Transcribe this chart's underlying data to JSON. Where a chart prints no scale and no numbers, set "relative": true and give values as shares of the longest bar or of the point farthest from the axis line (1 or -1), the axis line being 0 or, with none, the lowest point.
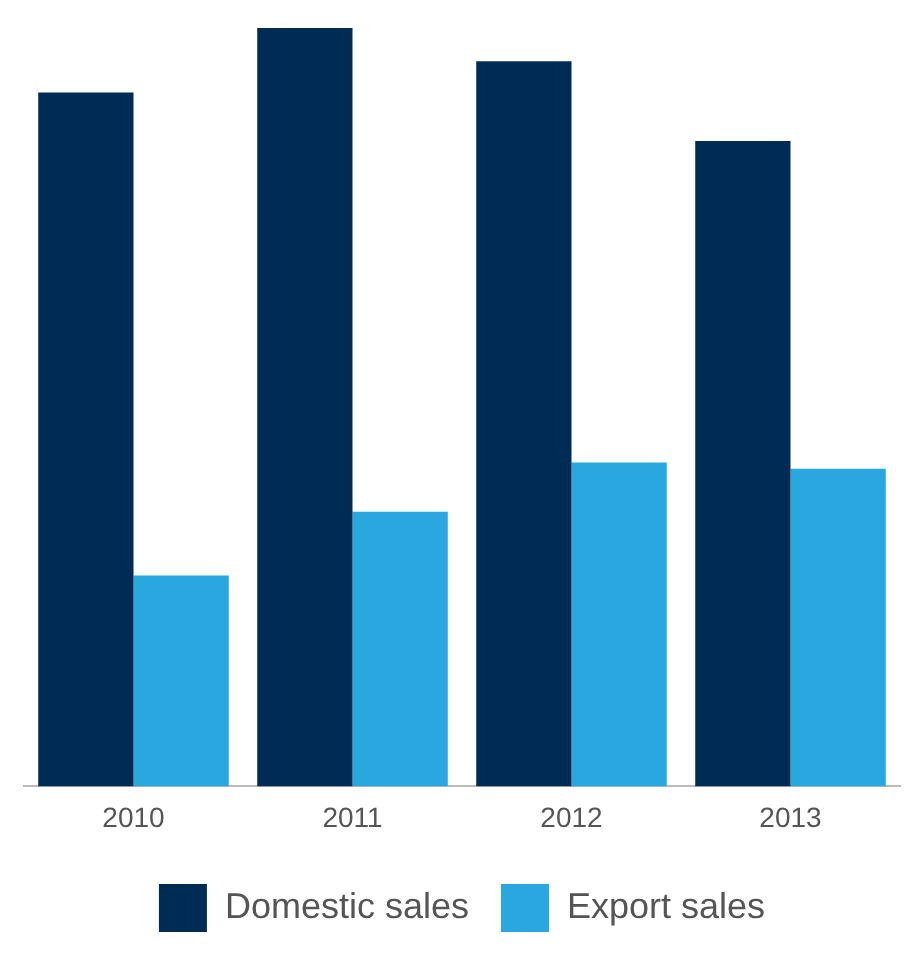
{
  "chart_data": {
    "type": "bar",
    "relative": true,
    "categories": [
      "2010",
      "2011",
      "2012",
      "2013"
    ],
    "series": [
      {
        "name": "Domestic sales",
        "color": "#002b54",
        "values": [
          0.915,
          1,
          0.956,
          0.851
        ]
      },
      {
        "name": "Export sales",
        "color": "#29a8e0",
        "values": [
          0.278,
          0.362,
          0.427,
          0.419
        ]
      }
    ],
    "legend": "bottom",
    "grid": false
  }
}
